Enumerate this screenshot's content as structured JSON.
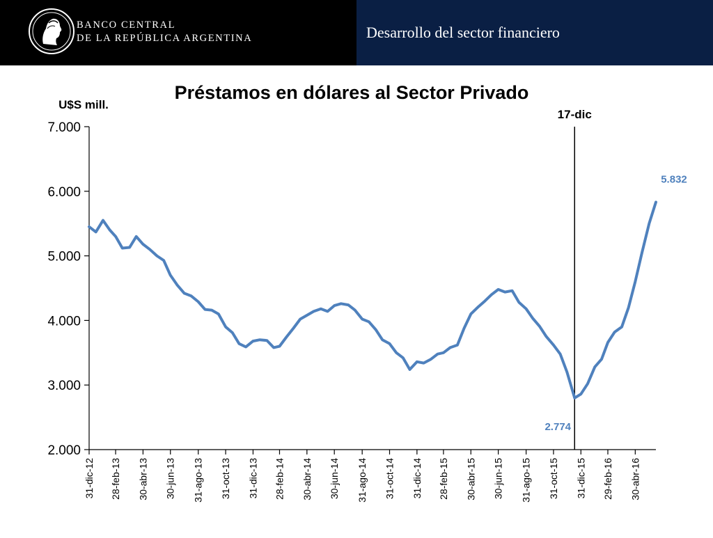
{
  "header": {
    "bank_name_line1": "BANCO CENTRAL",
    "bank_name_line2": "DE LA REPÚBLICA ARGENTINA",
    "section_title": "Desarrollo del sector financiero",
    "left_color": "#000000",
    "right_color": "#0a1f44"
  },
  "chart_data": {
    "type": "line",
    "title": "Préstamos en dólares al Sector Privado",
    "ylabel": "U$S mill.",
    "xlabel": "",
    "ylim": [
      2000,
      7000
    ],
    "y_ticks": [
      2000,
      3000,
      4000,
      5000,
      6000,
      7000
    ],
    "y_tick_labels": [
      "2.000",
      "3.000",
      "4.000",
      "5.000",
      "6.000",
      "7.000"
    ],
    "x_tick_labels": [
      "31-dic-12",
      "28-feb-13",
      "30-abr-13",
      "30-jun-13",
      "31-ago-13",
      "31-oct-13",
      "31-dic-13",
      "28-feb-14",
      "30-abr-14",
      "30-jun-14",
      "31-ago-14",
      "31-oct-14",
      "31-dic-14",
      "28-feb-15",
      "30-abr-15",
      "30-jun-15",
      "31-ago-15",
      "31-oct-15",
      "31-dic-15",
      "29-feb-16",
      "30-abr-16"
    ],
    "series_color": "#4f81bd",
    "series": [
      {
        "x": [
          "31-dic-12",
          "15-ene-13",
          "31-ene-13",
          "15-feb-13",
          "28-feb-13",
          "15-mar-13",
          "31-mar-13",
          "15-abr-13",
          "30-abr-13",
          "15-may-13",
          "31-may-13",
          "15-jun-13",
          "30-jun-13",
          "15-jul-13",
          "31-jul-13",
          "15-ago-13",
          "31-ago-13",
          "15-sep-13",
          "30-sep-13",
          "15-oct-13",
          "31-oct-13",
          "15-nov-13",
          "30-nov-13",
          "15-dic-13",
          "31-dic-13",
          "15-ene-14",
          "31-ene-14",
          "15-feb-14",
          "28-feb-14",
          "15-mar-14",
          "31-mar-14",
          "15-abr-14",
          "30-abr-14",
          "15-may-14",
          "31-may-14",
          "15-jun-14",
          "30-jun-14",
          "15-jul-14",
          "31-jul-14",
          "15-ago-14",
          "31-ago-14",
          "15-sep-14",
          "30-sep-14",
          "15-oct-14",
          "31-oct-14",
          "15-nov-14",
          "30-nov-14",
          "15-dic-14",
          "31-dic-14",
          "15-ene-15",
          "31-ene-15",
          "15-feb-15",
          "28-feb-15",
          "15-mar-15",
          "31-mar-15",
          "15-abr-15",
          "30-abr-15",
          "15-may-15",
          "31-may-15",
          "15-jun-15",
          "30-jun-15",
          "15-jul-15",
          "31-jul-15",
          "15-ago-15",
          "31-ago-15",
          "15-sep-15",
          "30-sep-15",
          "15-oct-15",
          "31-oct-15",
          "15-nov-15",
          "30-nov-15",
          "17-dic-15",
          "31-dic-15",
          "15-ene-16",
          "31-ene-16",
          "15-feb-16",
          "29-feb-16",
          "15-mar-16",
          "31-mar-16",
          "15-abr-16",
          "30-abr-16",
          "15-may-16",
          "31-may-16",
          "15-jun-16"
        ],
        "y": [
          5450,
          5370,
          5550,
          5400,
          5300,
          5120,
          5130,
          5300,
          5180,
          5100,
          5000,
          4930,
          4700,
          4550,
          4420,
          4380,
          4290,
          4170,
          4160,
          4100,
          3900,
          3810,
          3640,
          3590,
          3680,
          3700,
          3690,
          3580,
          3600,
          3740,
          3880,
          4020,
          4080,
          4140,
          4180,
          4140,
          4230,
          4260,
          4240,
          4160,
          4020,
          3980,
          3860,
          3700,
          3640,
          3500,
          3420,
          3240,
          3360,
          3340,
          3400,
          3480,
          3500,
          3580,
          3620,
          3880,
          4100,
          4200,
          4300,
          4400,
          4480,
          4440,
          4460,
          4280,
          4180,
          4030,
          3910,
          3750,
          3620,
          3480,
          3200,
          2800,
          2860,
          3020,
          3280,
          3400,
          3660,
          3820,
          3900,
          4200,
          4600,
          5050,
          5500,
          5832
        ]
      }
    ],
    "annotations": [
      {
        "label": "17-dic",
        "x": "17-dic-15"
      },
      {
        "label": "2.774",
        "x": "17-dic-15",
        "y": 2774
      },
      {
        "label": "5.832",
        "x": "15-jun-16",
        "y": 5832
      }
    ]
  }
}
